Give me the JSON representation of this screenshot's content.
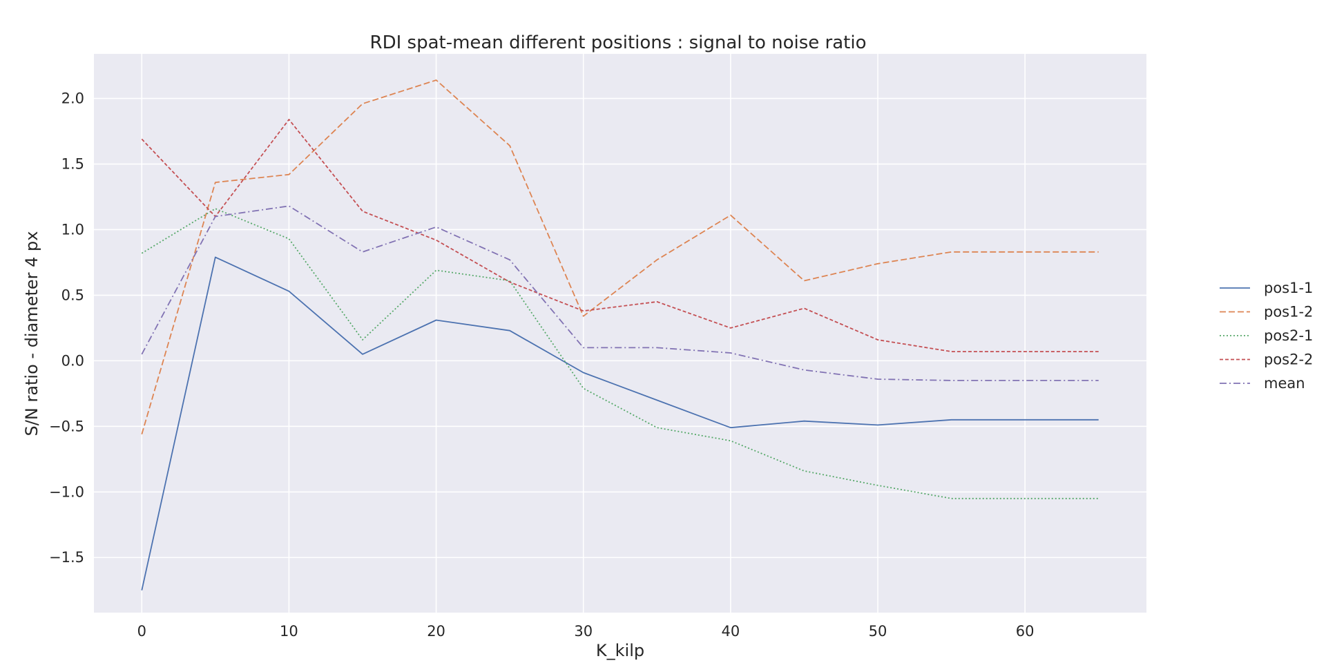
{
  "chart_data": {
    "type": "line",
    "title": "RDI spat-mean different positions : signal to noise ratio",
    "xlabel": "K_kilp",
    "ylabel": "S/N ratio - diameter 4 px",
    "x": [
      0,
      5,
      10,
      15,
      20,
      25,
      30,
      35,
      40,
      45,
      50,
      55,
      60,
      65
    ],
    "xlim": [
      -3.25,
      68.25
    ],
    "ylim": [
      -1.92,
      2.34
    ],
    "xticks": [
      0,
      10,
      20,
      30,
      40,
      50,
      60
    ],
    "yticks": [
      -1.5,
      -1.0,
      -0.5,
      0.0,
      0.5,
      1.0,
      1.5,
      2.0
    ],
    "xtick_labels": [
      "0",
      "10",
      "20",
      "30",
      "40",
      "50",
      "60"
    ],
    "ytick_labels": [
      "−1.5",
      "−1.0",
      "−0.5",
      "0.0",
      "0.5",
      "1.0",
      "1.5",
      "2.0"
    ],
    "grid": true,
    "legend_position": "right",
    "background": "#eaeaf2",
    "series": [
      {
        "name": "pos1-1",
        "color": "#4c72b0",
        "dash": "solid",
        "values": [
          -1.75,
          0.79,
          0.53,
          0.05,
          0.31,
          0.23,
          -0.09,
          -0.3,
          -0.51,
          -0.46,
          -0.49,
          -0.45,
          -0.45,
          -0.45
        ]
      },
      {
        "name": "pos1-2",
        "color": "#dd8452",
        "dash": "dashed",
        "values": [
          -0.56,
          1.36,
          1.42,
          1.96,
          2.14,
          1.64,
          0.34,
          0.77,
          1.11,
          0.61,
          0.74,
          0.83,
          0.83,
          0.83
        ]
      },
      {
        "name": "pos2-1",
        "color": "#55a868",
        "dash": "dotted",
        "values": [
          0.82,
          1.16,
          0.93,
          0.16,
          0.69,
          0.61,
          -0.21,
          -0.51,
          -0.61,
          -0.84,
          -0.95,
          -1.05,
          -1.05,
          -1.05
        ]
      },
      {
        "name": "pos2-2",
        "color": "#c44e52",
        "dash": "densedash",
        "values": [
          1.69,
          1.1,
          1.84,
          1.14,
          0.92,
          0.6,
          0.38,
          0.45,
          0.25,
          0.4,
          0.16,
          0.07,
          0.07,
          0.07
        ]
      },
      {
        "name": "mean",
        "color": "#8172b3",
        "dash": "dashdot",
        "values": [
          0.05,
          1.1,
          1.18,
          0.83,
          1.02,
          0.77,
          0.1,
          0.1,
          0.06,
          -0.07,
          -0.14,
          -0.15,
          -0.15,
          -0.15
        ]
      }
    ]
  }
}
